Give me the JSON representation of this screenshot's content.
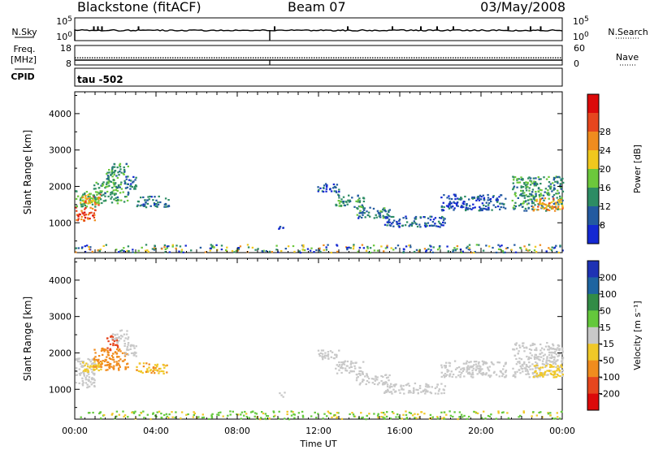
{
  "header": {
    "station": "Blackstone (fitACF)",
    "beam": "Beam 07",
    "date": "03/May/2008"
  },
  "chart_data": {
    "type": "heatmap",
    "title": "Blackstone (fitACF)",
    "subtitle": "Beam 07",
    "date": "03/May/2008",
    "xlabel": "Time UT",
    "x_ticks": [
      "00:00",
      "04:00",
      "08:00",
      "12:00",
      "16:00",
      "20:00",
      "00:00"
    ],
    "xlim_hours": [
      0,
      24
    ],
    "top_panels": {
      "noise": {
        "left_label": "N.Sky",
        "right_label": "N.Search",
        "left_ticks": [
          "10^5",
          "10^0"
        ],
        "right_ticks": [
          "10^5",
          "10^0"
        ],
        "sky_level": 10,
        "spike_hours": [
          0.9,
          1.1,
          1.3,
          3.1,
          9.8,
          13.4,
          15.6,
          17.0,
          17.8,
          18.6,
          21.3,
          22.4,
          22.9
        ]
      },
      "frequency": {
        "left_label": "Freq.",
        "left_unit": "[MHz]",
        "right_label": "Nave",
        "left_ticks": [
          "18",
          "8"
        ],
        "right_ticks": [
          "60",
          "0"
        ],
        "frequency_mhz": 10.5,
        "nave": 22
      },
      "cpid": {
        "label": "CPID",
        "value": "tau -502"
      }
    },
    "panels": [
      {
        "name": "power",
        "ylabel": "Slant Range [km]",
        "yticks": [
          1000,
          2000,
          3000,
          4000
        ],
        "ylim": [
          180,
          4600
        ],
        "colorbar_label": "Power [dB]",
        "colorbar_ticks": [
          "8",
          "12",
          "16",
          "20",
          "24",
          "28"
        ],
        "colorbar_min": 4,
        "colorbar_max": 32,
        "colors": [
          "#1428d2",
          "#235aa0",
          "#2d8c64",
          "#6cc83c",
          "#f0c81e",
          "#f08c1e",
          "#e6461e",
          "#dc0a0a"
        ]
      },
      {
        "name": "velocity",
        "ylabel": "Slant Range [km]",
        "yticks": [
          1000,
          2000,
          3000,
          4000
        ],
        "ylim": [
          180,
          4600
        ],
        "colorbar_label": "Velocity [m s⁻¹]",
        "colorbar_ticks": [
          "200",
          "100",
          "50",
          "15",
          "-15",
          "-50",
          "-100",
          "-200"
        ],
        "colors": [
          "#1e32b4",
          "#1e64a0",
          "#328c46",
          "#64c83c",
          "#c8c8c8",
          "#f0c828",
          "#f08c1e",
          "#e6461e",
          "#dc0a0a"
        ]
      }
    ],
    "echo_regions": [
      {
        "t0": 0.0,
        "t1": 1.0,
        "r0": 1050,
        "r1": 1450,
        "power": 27,
        "velocity": -5
      },
      {
        "t0": 0.0,
        "t1": 1.0,
        "r0": 1450,
        "r1": 1900,
        "power": 15,
        "velocity": -5
      },
      {
        "t0": 0.3,
        "t1": 1.3,
        "r0": 1500,
        "r1": 1800,
        "power": 22,
        "velocity": -30
      },
      {
        "t0": 0.9,
        "t1": 2.6,
        "r0": 1550,
        "r1": 2150,
        "power": 14,
        "velocity": -60
      },
      {
        "t0": 1.5,
        "t1": 2.1,
        "r0": 2100,
        "r1": 2500,
        "power": 14,
        "velocity": -180
      },
      {
        "t0": 1.8,
        "t1": 2.6,
        "r0": 2300,
        "r1": 2650,
        "power": 12,
        "velocity": -5
      },
      {
        "t0": 2.4,
        "t1": 3.0,
        "r0": 1900,
        "r1": 2300,
        "power": 10,
        "velocity": -5
      },
      {
        "t0": 3.0,
        "t1": 4.6,
        "r0": 1450,
        "r1": 1750,
        "power": 11,
        "velocity": -45
      },
      {
        "t0": 10.0,
        "t1": 10.3,
        "r0": 800,
        "r1": 950,
        "power": 10,
        "velocity": -5
      },
      {
        "t0": 11.9,
        "t1": 13.0,
        "r0": 1850,
        "r1": 2100,
        "power": 9,
        "velocity": -5
      },
      {
        "t0": 12.8,
        "t1": 14.2,
        "r0": 1450,
        "r1": 1800,
        "power": 13,
        "velocity": -5
      },
      {
        "t0": 13.8,
        "t1": 15.5,
        "r0": 1150,
        "r1": 1450,
        "power": 11,
        "velocity": -5
      },
      {
        "t0": 15.2,
        "t1": 18.2,
        "r0": 900,
        "r1": 1200,
        "power": 9,
        "velocity": -5
      },
      {
        "t0": 18.0,
        "t1": 21.2,
        "r0": 1350,
        "r1": 1800,
        "power": 8,
        "velocity": -5
      },
      {
        "t0": 21.5,
        "t1": 24.0,
        "r0": 1350,
        "r1": 2300,
        "power": 13,
        "velocity": -5
      },
      {
        "t0": 22.5,
        "t1": 24.0,
        "r0": 1350,
        "r1": 1700,
        "power": 22,
        "velocity": -40
      },
      {
        "t0": 0.0,
        "t1": 24.0,
        "r0": 200,
        "r1": 420,
        "power": 10,
        "velocity": 20
      }
    ]
  }
}
